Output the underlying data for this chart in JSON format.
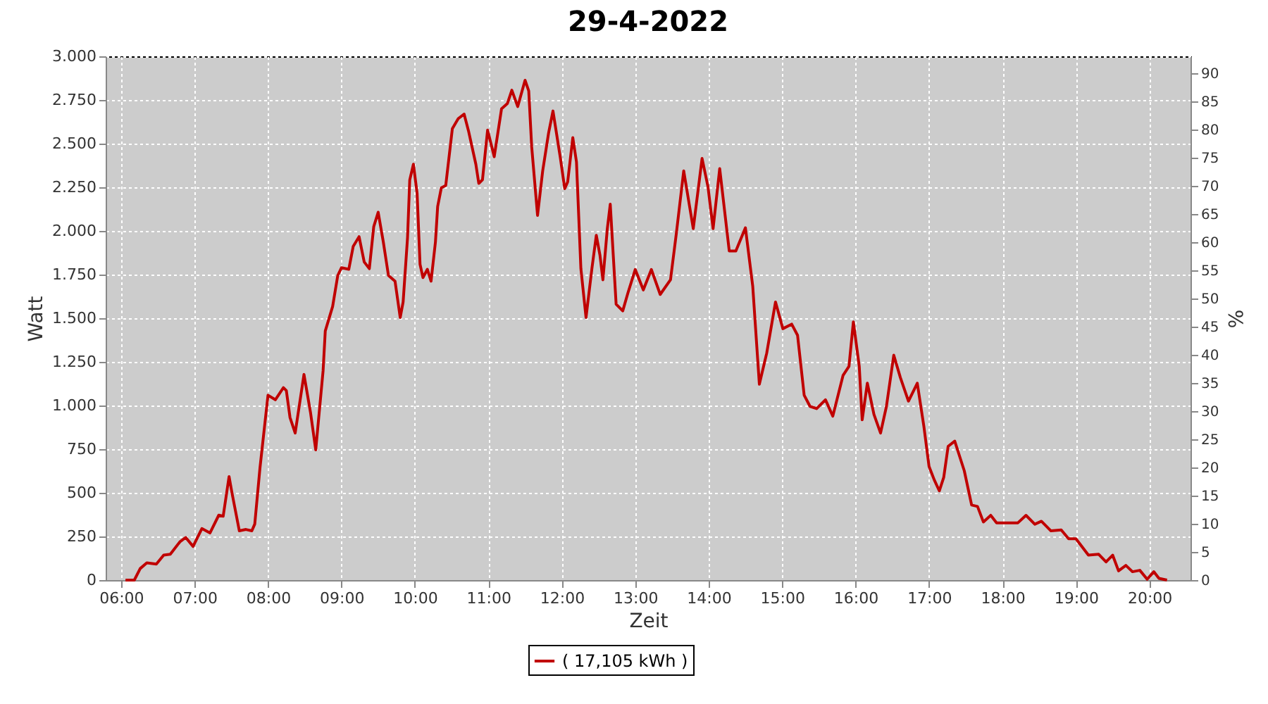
{
  "chart_data": {
    "type": "line",
    "title": "29-4-2022",
    "xlabel": "Zeit",
    "ylabel": "Watt",
    "y2label": "%",
    "xlim": [
      5.79,
      20.56
    ],
    "xticks": [
      {
        "value": 6,
        "label": "06:00"
      },
      {
        "value": 7,
        "label": "07:00"
      },
      {
        "value": 8,
        "label": "08:00"
      },
      {
        "value": 9,
        "label": "09:00"
      },
      {
        "value": 10,
        "label": "10:00"
      },
      {
        "value": 11,
        "label": "11:00"
      },
      {
        "value": 12,
        "label": "12:00"
      },
      {
        "value": 13,
        "label": "13:00"
      },
      {
        "value": 14,
        "label": "14:00"
      },
      {
        "value": 15,
        "label": "15:00"
      },
      {
        "value": 16,
        "label": "16:00"
      },
      {
        "value": 17,
        "label": "17:00"
      },
      {
        "value": 18,
        "label": "18:00"
      },
      {
        "value": 19,
        "label": "19:00"
      },
      {
        "value": 20,
        "label": "20:00"
      }
    ],
    "ylim": [
      0,
      3000
    ],
    "yticks": [
      0,
      250,
      500,
      750,
      {
        "value": 1000,
        "label": "1.000"
      },
      {
        "value": 1250,
        "label": "1.250"
      },
      {
        "value": 1500,
        "label": "1.500"
      },
      {
        "value": 1750,
        "label": "1.750"
      },
      {
        "value": 2000,
        "label": "2.000"
      },
      {
        "value": 2250,
        "label": "2.250"
      },
      {
        "value": 2500,
        "label": "2.500"
      },
      {
        "value": 2750,
        "label": "2.750"
      },
      {
        "value": 3000,
        "label": "3.000"
      }
    ],
    "y2lim": [
      0,
      93
    ],
    "y2ticks": [
      0,
      5,
      10,
      15,
      20,
      25,
      30,
      35,
      40,
      45,
      50,
      55,
      60,
      65,
      70,
      75,
      80,
      85,
      90
    ],
    "grid": true,
    "legend": "bottom",
    "x": [
      6.06,
      6.18,
      6.26,
      6.35,
      6.48,
      6.58,
      6.67,
      6.8,
      6.88,
      6.98,
      7.1,
      7.21,
      7.33,
      7.39,
      7.47,
      7.51,
      7.61,
      7.7,
      7.78,
      7.82,
      7.89,
      8.0,
      8.1,
      8.21,
      8.25,
      8.3,
      8.37,
      8.49,
      8.58,
      8.65,
      8.75,
      8.78,
      8.88,
      8.95,
      9.0,
      9.1,
      9.16,
      9.24,
      9.31,
      9.38,
      9.44,
      9.5,
      9.57,
      9.64,
      9.73,
      9.8,
      9.84,
      9.9,
      9.93,
      9.98,
      10.03,
      10.07,
      10.11,
      10.17,
      10.22,
      10.28,
      10.31,
      10.36,
      10.42,
      10.51,
      10.59,
      10.67,
      10.73,
      10.83,
      10.87,
      10.92,
      10.99,
      11.08,
      11.18,
      11.26,
      11.32,
      11.4,
      11.5,
      11.55,
      11.59,
      11.67,
      11.74,
      11.82,
      11.88,
      11.98,
      12.04,
      12.08,
      12.15,
      12.2,
      12.26,
      12.33,
      12.41,
      12.47,
      12.52,
      12.56,
      12.62,
      12.66,
      12.74,
      12.83,
      12.9,
      13.0,
      13.11,
      13.22,
      13.34,
      13.48,
      13.56,
      13.66,
      13.79,
      13.91,
      13.99,
      14.06,
      14.15,
      14.28,
      14.37,
      14.5,
      14.6,
      14.69,
      14.79,
      14.91,
      15.01,
      15.13,
      15.21,
      15.3,
      15.38,
      15.47,
      15.59,
      15.69,
      15.83,
      15.91,
      15.97,
      16.05,
      16.09,
      16.16,
      16.25,
      16.34,
      16.42,
      16.52,
      16.61,
      16.72,
      16.84,
      16.93,
      17.0,
      17.07,
      17.14,
      17.2,
      17.26,
      17.35,
      17.48,
      17.58,
      17.66,
      17.74,
      17.84,
      17.92,
      18.21,
      18.32,
      18.44,
      18.53,
      18.66,
      18.8,
      18.9,
      19.0,
      19.17,
      19.31,
      19.41,
      19.5,
      19.58,
      19.68,
      19.77,
      19.87,
      19.97,
      20.06,
      20.13,
      20.24
    ],
    "series": [
      {
        "name": "( 17,105 kWh )",
        "color": "#c00000",
        "values": [
          0,
          0,
          66,
          99,
          92,
          143,
          148,
          219,
          244,
          193,
          295,
          270,
          372,
          366,
          593,
          499,
          282,
          290,
          282,
          321,
          639,
          1059,
          1033,
          1102,
          1085,
          931,
          842,
          1178,
          957,
          746,
          1198,
          1427,
          1567,
          1745,
          1789,
          1780,
          1911,
          1967,
          1822,
          1784,
          2025,
          2107,
          1937,
          1745,
          1712,
          1504,
          1593,
          1962,
          2292,
          2382,
          2216,
          1809,
          1733,
          1780,
          1712,
          1937,
          2140,
          2247,
          2260,
          2586,
          2643,
          2669,
          2573,
          2382,
          2272,
          2293,
          2578,
          2425,
          2700,
          2730,
          2806,
          2712,
          2863,
          2802,
          2483,
          2089,
          2344,
          2560,
          2687,
          2420,
          2242,
          2280,
          2534,
          2395,
          1784,
          1504,
          1784,
          1975,
          1860,
          1720,
          2013,
          2153,
          1580,
          1542,
          1644,
          1779,
          1662,
          1779,
          1636,
          1720,
          1987,
          2344,
          2013,
          2415,
          2254,
          2013,
          2357,
          1885,
          1885,
          2018,
          1682,
          1122,
          1300,
          1593,
          1440,
          1466,
          1402,
          1059,
          995,
          982,
          1033,
          939,
          1173,
          1224,
          1479,
          1224,
          918,
          1128,
          949,
          842,
          995,
          1288,
          1160,
          1025,
          1128,
          880,
          651,
          575,
          511,
          588,
          766,
          796,
          626,
          430,
          422,
          333,
          371,
          328,
          328,
          371,
          320,
          337,
          282,
          287,
          237,
          237,
          143,
          148,
          104,
          143,
          53,
          84,
          48,
          56,
          5,
          48,
          10,
          0
        ]
      }
    ]
  }
}
